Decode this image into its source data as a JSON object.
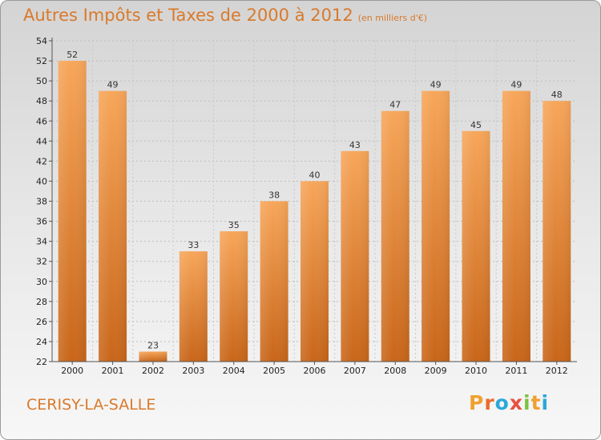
{
  "chart_data": {
    "type": "bar",
    "title": "Autres Impôts et Taxes de 2000 à 2012",
    "unit_note": "(en milliers d'€)",
    "categories": [
      "2000",
      "2001",
      "2002",
      "2003",
      "2004",
      "2005",
      "2006",
      "2007",
      "2008",
      "2009",
      "2010",
      "2011",
      "2012"
    ],
    "values": [
      52,
      49,
      23,
      33,
      35,
      38,
      40,
      43,
      47,
      49,
      45,
      49,
      48
    ],
    "ylim": [
      22,
      54
    ],
    "yticks": [
      22,
      24,
      26,
      28,
      30,
      32,
      34,
      36,
      38,
      40,
      42,
      44,
      46,
      48,
      50,
      52,
      54
    ],
    "grid": true,
    "bar_color_top": "#f7a65a",
    "bar_color_bottom": "#c8661a",
    "accent_color": "#d97a2b"
  },
  "footer": {
    "location": "CERISY-LA-SALLE",
    "brand": "Proxiti"
  },
  "brand_letter_colors": [
    "#f0a030",
    "#e86d2a",
    "#2aa9d8",
    "#e85040",
    "#7cc243",
    "#f0a030",
    "#2aa9d8"
  ]
}
